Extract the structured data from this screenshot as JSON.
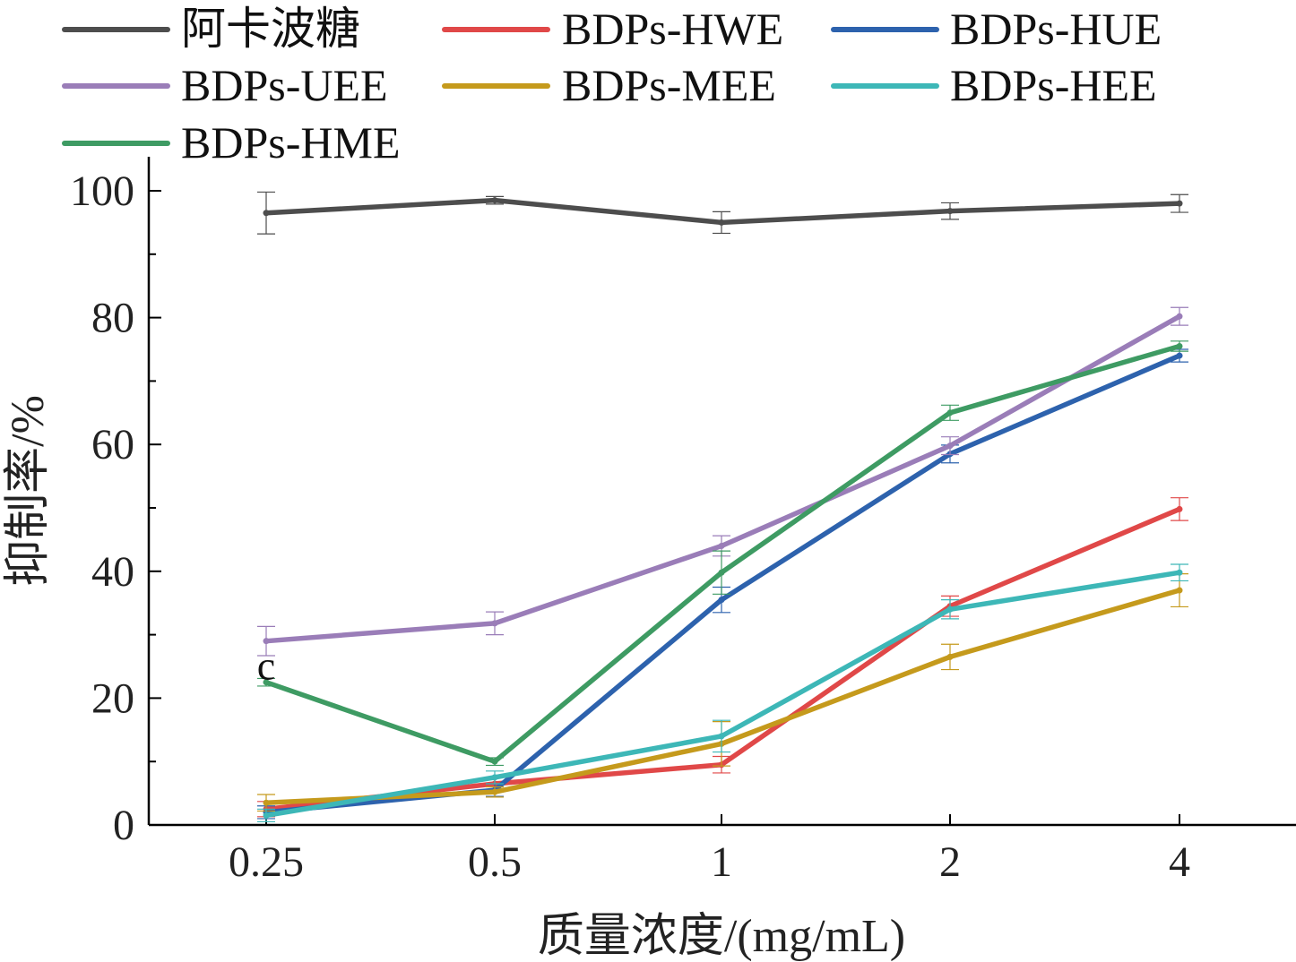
{
  "chart_data": {
    "type": "line",
    "title": "",
    "xlabel": "质量浓度/(mg/mL)",
    "ylabel": "抑制率/%",
    "categories": [
      "0.25",
      "0.5",
      "1",
      "2",
      "4"
    ],
    "ylim": [
      0,
      105
    ],
    "yticks": [
      0,
      20,
      40,
      60,
      80,
      100
    ],
    "grid": false,
    "legend_position": "top",
    "series": [
      {
        "name": "阿卡波糖",
        "color": "#4d4d4d",
        "values": [
          96.5,
          98.5,
          95.0,
          96.8,
          98.0
        ],
        "errors": [
          3.3,
          0.6,
          1.7,
          1.3,
          1.4
        ]
      },
      {
        "name": "BDPs-HWE",
        "color": "#e04848",
        "values": [
          2.5,
          6.5,
          9.5,
          34.5,
          49.8
        ],
        "errors": [
          1.2,
          1.0,
          1.3,
          1.6,
          1.8
        ]
      },
      {
        "name": "BDPs-HUE",
        "color": "#2d62ad",
        "values": [
          2.0,
          5.5,
          35.5,
          58.5,
          74.0
        ],
        "errors": [
          1.0,
          1.0,
          2.0,
          1.4,
          1.0
        ]
      },
      {
        "name": "BDPs-UEE",
        "color": "#9a7db8",
        "values": [
          29.0,
          31.8,
          44.0,
          59.8,
          80.2
        ],
        "errors": [
          2.3,
          1.8,
          1.6,
          1.4,
          1.4
        ]
      },
      {
        "name": "BDPs-MEE",
        "color": "#c59a1c",
        "values": [
          3.5,
          5.2,
          12.8,
          26.5,
          37.0
        ],
        "errors": [
          1.3,
          0.8,
          3.5,
          2.0,
          2.6
        ]
      },
      {
        "name": "BDPs-HEE",
        "color": "#3db7b7",
        "values": [
          1.5,
          7.5,
          14.0,
          34.0,
          39.8
        ],
        "errors": [
          1.0,
          1.0,
          2.5,
          1.5,
          1.3
        ]
      },
      {
        "name": "BDPs-HME",
        "color": "#3e9b63",
        "values": [
          22.5,
          10.0,
          39.8,
          65.0,
          75.5
        ],
        "errors": [
          0.6,
          0.6,
          3.4,
          1.2,
          0.8
        ]
      }
    ],
    "annotations": [
      {
        "text": "c",
        "category": "0.25",
        "y": 25.5
      }
    ]
  }
}
